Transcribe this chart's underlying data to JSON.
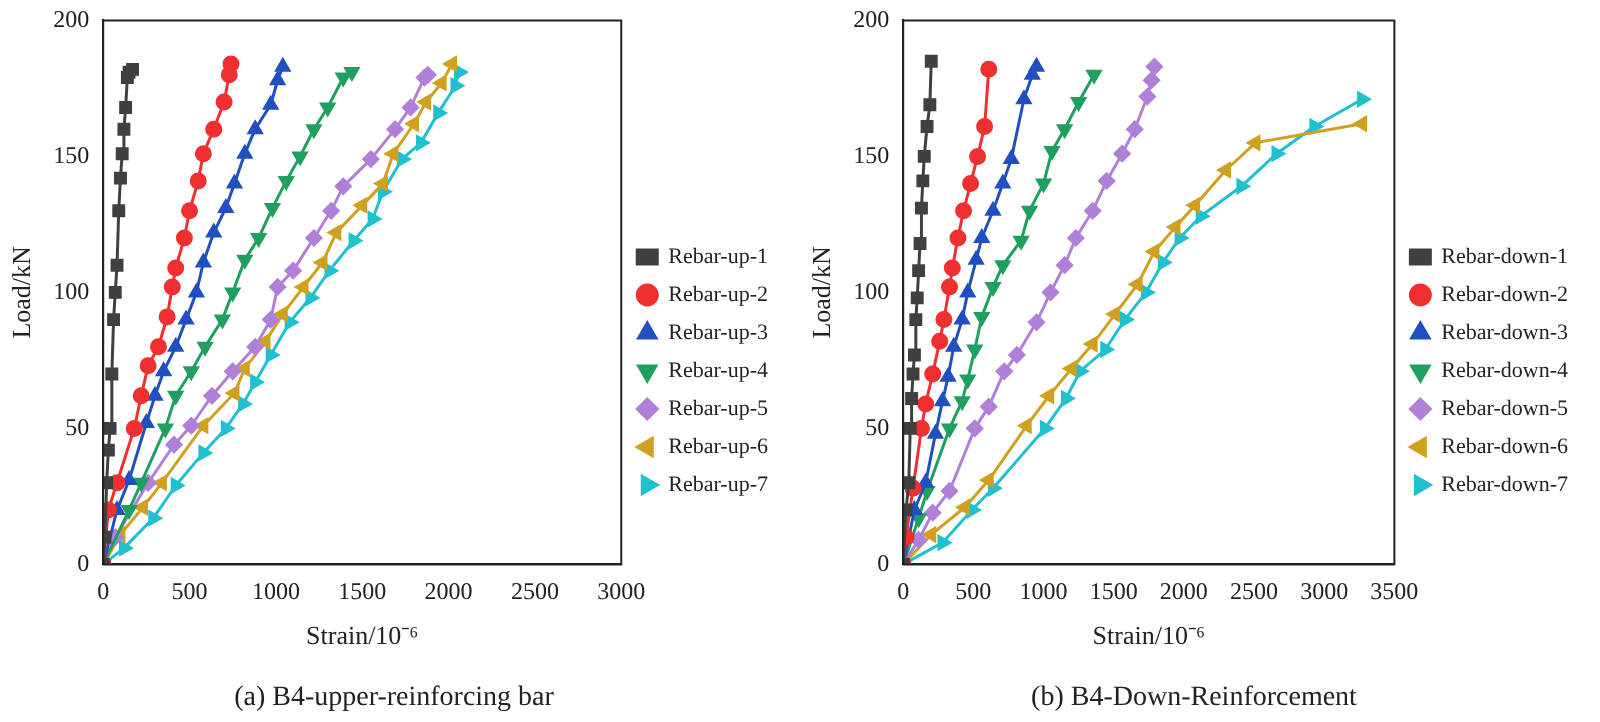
{
  "chart_data": [
    {
      "type": "line",
      "title": "(a) B4-upper-reinforcing bar",
      "xlabel": "Strain/10⁻⁶",
      "ylabel": "Load/kN",
      "xlim": [
        0,
        3000
      ],
      "xticks": [
        0,
        500,
        1000,
        1500,
        2000,
        2500,
        3000
      ],
      "ylim": [
        0,
        200
      ],
      "yticks": [
        0,
        50,
        100,
        150,
        200
      ],
      "legend": "right",
      "grid": false,
      "series": [
        {
          "name": "Rebar-up-1",
          "color": "#404040",
          "marker": "square",
          "x": [
            0,
            10,
            20,
            30,
            40,
            50,
            60,
            70,
            80,
            90,
            100,
            110,
            120,
            130,
            140,
            150,
            170
          ],
          "values": [
            0,
            10,
            30,
            42,
            50,
            70,
            90,
            100,
            110,
            130,
            142,
            151,
            160,
            168,
            179,
            181,
            182
          ]
        },
        {
          "name": "Rebar-up-2",
          "color": "#f03030",
          "marker": "circle",
          "x": [
            0,
            30,
            80,
            180,
            220,
            260,
            320,
            370,
            400,
            420,
            470,
            500,
            550,
            580,
            640,
            700,
            730,
            740
          ],
          "values": [
            0,
            20,
            30,
            50,
            62,
            73,
            80,
            91,
            102,
            109,
            120,
            130,
            141,
            151,
            160,
            170,
            180,
            184
          ]
        },
        {
          "name": "Rebar-up-3",
          "color": "#2050c0",
          "marker": "triangle",
          "x": [
            0,
            80,
            150,
            250,
            300,
            350,
            420,
            480,
            540,
            580,
            640,
            710,
            760,
            820,
            880,
            970,
            1010,
            1040
          ],
          "values": [
            0,
            20,
            31,
            52,
            62,
            71,
            80,
            90,
            100,
            111,
            122,
            131,
            140,
            151,
            160,
            169,
            178,
            183
          ]
        },
        {
          "name": "Rebar-up-4",
          "color": "#20a060",
          "marker": "triangle-down",
          "x": [
            0,
            150,
            220,
            360,
            420,
            510,
            590,
            690,
            750,
            820,
            900,
            980,
            1060,
            1140,
            1220,
            1300,
            1390,
            1440
          ],
          "values": [
            0,
            20,
            30,
            50,
            62,
            71,
            80,
            90,
            100,
            112,
            120,
            131,
            141,
            150,
            160,
            168,
            179,
            181
          ]
        },
        {
          "name": "Rebar-up-5",
          "color": "#b080d8",
          "marker": "diamond",
          "x": [
            0,
            70,
            260,
            410,
            510,
            630,
            750,
            880,
            970,
            1010,
            1100,
            1220,
            1320,
            1390,
            1550,
            1690,
            1780,
            1860,
            1880
          ],
          "values": [
            0,
            10,
            30,
            44,
            51,
            62,
            71,
            80,
            90,
            102,
            108,
            120,
            130,
            139,
            149,
            160,
            168,
            179,
            180
          ]
        },
        {
          "name": "Rebar-up-6",
          "color": "#d0a020",
          "marker": "triangle-left",
          "x": [
            0,
            100,
            230,
            340,
            580,
            760,
            820,
            940,
            1040,
            1160,
            1270,
            1350,
            1500,
            1620,
            1680,
            1800,
            1870,
            1960,
            2020
          ],
          "values": [
            0,
            11,
            21,
            30,
            51,
            63,
            72,
            82,
            92,
            102,
            111,
            122,
            132,
            140,
            151,
            162,
            170,
            177,
            184
          ]
        },
        {
          "name": "Rebar-up-7",
          "color": "#20c0d0",
          "marker": "triangle-right",
          "x": [
            0,
            120,
            290,
            420,
            580,
            710,
            810,
            880,
            970,
            1080,
            1200,
            1310,
            1450,
            1560,
            1620,
            1730,
            1840,
            1940,
            2040,
            2060
          ],
          "values": [
            0,
            6,
            17,
            29,
            41,
            50,
            59,
            67,
            77,
            89,
            98,
            108,
            119,
            127,
            137,
            149,
            155,
            166,
            176,
            181
          ]
        }
      ]
    },
    {
      "type": "line",
      "title": "(b) B4-Down-Reinforcement",
      "xlabel": "Strain/10⁻⁶",
      "ylabel": "Load/kN",
      "xlim": [
        0,
        3500
      ],
      "xticks": [
        0,
        500,
        1000,
        1500,
        2000,
        2500,
        3000,
        3500
      ],
      "ylim": [
        0,
        200
      ],
      "yticks": [
        0,
        50,
        100,
        150,
        200
      ],
      "legend": "right",
      "grid": false,
      "series": [
        {
          "name": "Rebar-down-1",
          "color": "#404040",
          "marker": "square",
          "x": [
            0,
            20,
            40,
            50,
            60,
            70,
            80,
            90,
            100,
            110,
            120,
            130,
            140,
            150,
            170,
            190,
            200
          ],
          "values": [
            0,
            20,
            30,
            50,
            61,
            70,
            77,
            90,
            98,
            108,
            118,
            131,
            141,
            150,
            161,
            169,
            185
          ]
        },
        {
          "name": "Rebar-down-2",
          "color": "#f03030",
          "marker": "circle",
          "x": [
            0,
            20,
            70,
            130,
            160,
            210,
            260,
            290,
            330,
            350,
            390,
            430,
            480,
            530,
            580,
            610
          ],
          "values": [
            0,
            10,
            28,
            50,
            59,
            70,
            82,
            90,
            102,
            109,
            120,
            130,
            140,
            150,
            161,
            182
          ]
        },
        {
          "name": "Rebar-down-3",
          "color": "#2050c0",
          "marker": "triangle",
          "x": [
            0,
            80,
            160,
            230,
            280,
            320,
            360,
            420,
            460,
            520,
            560,
            640,
            710,
            770,
            860,
            920,
            950
          ],
          "values": [
            0,
            20,
            30,
            48,
            60,
            69,
            80,
            90,
            100,
            112,
            120,
            130,
            140,
            149,
            171,
            180,
            183
          ]
        },
        {
          "name": "Rebar-down-4",
          "color": "#20a060",
          "marker": "triangle-down",
          "x": [
            0,
            110,
            170,
            330,
            420,
            460,
            510,
            560,
            640,
            710,
            840,
            900,
            1000,
            1060,
            1150,
            1250,
            1360
          ],
          "values": [
            0,
            17,
            27,
            50,
            60,
            68,
            79,
            91,
            102,
            110,
            119,
            130,
            140,
            152,
            160,
            170,
            180
          ]
        },
        {
          "name": "Rebar-down-5",
          "color": "#b080d8",
          "marker": "diamond",
          "x": [
            0,
            110,
            210,
            330,
            510,
            610,
            720,
            810,
            950,
            1050,
            1150,
            1230,
            1350,
            1450,
            1560,
            1650,
            1740,
            1770,
            1790
          ],
          "values": [
            0,
            9,
            19,
            27,
            50,
            58,
            71,
            77,
            89,
            100,
            110,
            120,
            130,
            141,
            151,
            160,
            172,
            178,
            183
          ]
        },
        {
          "name": "Rebar-down-6",
          "color": "#d0a020",
          "marker": "triangle-left",
          "x": [
            0,
            200,
            440,
            610,
            880,
            1040,
            1200,
            1350,
            1510,
            1670,
            1790,
            1940,
            2080,
            2300,
            2510,
            3270
          ],
          "values": [
            0,
            11,
            21,
            31,
            51,
            62,
            72,
            81,
            92,
            103,
            115,
            124,
            132,
            145,
            155,
            162
          ]
        },
        {
          "name": "Rebar-down-7",
          "color": "#20c0d0",
          "marker": "triangle-right",
          "x": [
            0,
            280,
            490,
            640,
            1010,
            1160,
            1260,
            1440,
            1580,
            1730,
            1850,
            1970,
            2120,
            2410,
            2660,
            2930,
            3270
          ],
          "values": [
            0,
            8,
            20,
            28,
            50,
            61,
            71,
            79,
            90,
            100,
            111,
            120,
            128,
            139,
            151,
            161,
            171
          ]
        }
      ]
    }
  ]
}
